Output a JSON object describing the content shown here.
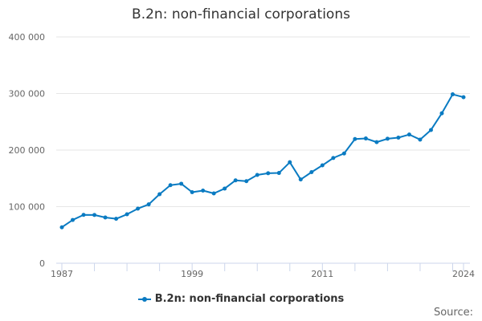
{
  "chart_data": {
    "type": "line",
    "title": "B.2n: non-financial corporations",
    "xlabel": "",
    "ylabel": "",
    "x": [
      1987,
      1988,
      1989,
      1990,
      1991,
      1992,
      1993,
      1994,
      1995,
      1996,
      1997,
      1998,
      1999,
      2000,
      2001,
      2002,
      2003,
      2004,
      2005,
      2006,
      2007,
      2008,
      2009,
      2010,
      2011,
      2012,
      2013,
      2014,
      2015,
      2016,
      2017,
      2018,
      2019,
      2020,
      2021,
      2022,
      2023,
      2024
    ],
    "series": [
      {
        "name": "B.2n: non-financial corporations",
        "color": "#0a7bc2",
        "values": [
          63500,
          76500,
          85500,
          85300,
          80800,
          78500,
          86500,
          96500,
          104000,
          122000,
          138000,
          140500,
          125500,
          128400,
          123400,
          132000,
          146500,
          145000,
          156000,
          159000,
          159500,
          178500,
          148000,
          161000,
          173000,
          186000,
          194000,
          219500,
          220500,
          214000,
          220000,
          222000,
          227500,
          218500,
          235500,
          265000,
          298500,
          293500
        ]
      }
    ],
    "ylim": [
      0,
      400000
    ],
    "yticks": [
      0,
      100000,
      200000,
      300000,
      400000
    ],
    "ytick_labels": [
      "0",
      "100 000",
      "200 000",
      "300 000",
      "400 000"
    ],
    "xtick_labels": [
      "1987",
      "1999",
      "2011",
      "2024"
    ],
    "grid": true,
    "legend": "bottom-center"
  },
  "source_label": "Source:"
}
